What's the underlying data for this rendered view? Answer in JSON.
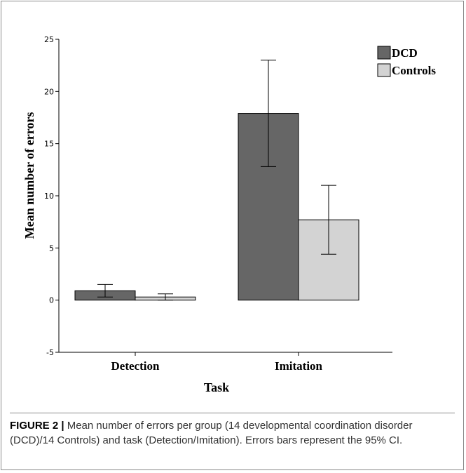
{
  "chart_data": {
    "type": "bar",
    "categories": [
      "Detection",
      "Imitation"
    ],
    "series": [
      {
        "name": "DCD",
        "color": "#666666",
        "values": [
          0.9,
          17.9
        ],
        "ci_low": [
          0.3,
          12.8
        ],
        "ci_high": [
          1.5,
          23.0
        ]
      },
      {
        "name": "Controls",
        "color": "#d3d3d3",
        "values": [
          0.3,
          7.7
        ],
        "ci_low": [
          0.0,
          4.4
        ],
        "ci_high": [
          0.6,
          11.0
        ]
      }
    ],
    "xlabel": "Task",
    "ylabel": "Mean number of errors",
    "ylim": [
      -5,
      25
    ],
    "yticks": [
      -5,
      0,
      5,
      10,
      15,
      20,
      25
    ],
    "grid": false,
    "legend_position": "top-right"
  },
  "caption": {
    "label": "FIGURE 2 |",
    "text": " Mean number of errors per group (14 developmental coordination disorder (DCD)/14 Controls) and task (Detection/Imitation). Errors bars represent the 95% CI."
  }
}
